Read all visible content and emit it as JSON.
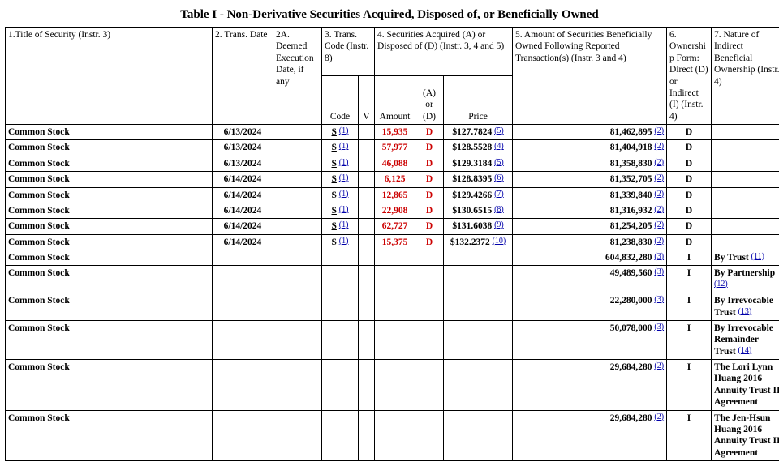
{
  "title": "Table I - Non-Derivative Securities Acquired, Disposed of, or Beneficially Owned",
  "headers": {
    "c1": "1.Title of Security\n(Instr. 3)",
    "c2": "2. Trans. Date",
    "c3": "2A. Deemed Execution Date, if any",
    "c4": "3. Trans. Code\n(Instr. 8)",
    "c6": "4. Securities Acquired (A) or Disposed of (D)\n(Instr. 3, 4 and 5)",
    "c9": "5. Amount of Securities Beneficially Owned Following Reported Transaction(s)\n(Instr. 3 and 4)",
    "c10": "6. Ownership Form: Direct (D) or Indirect (I) (Instr. 4)",
    "c11": "7. Nature of Indirect Beneficial Ownership\n(Instr. 4)",
    "sub_code": "Code",
    "sub_v": "V",
    "sub_amount": "Amount",
    "sub_ad": "(A) or (D)",
    "sub_price": "Price"
  },
  "rows": [
    {
      "title": "Common Stock",
      "date": "6/13/2024",
      "deemed": "",
      "code": "S",
      "code_fn": "(1)",
      "v": "",
      "amount": "15,935",
      "amount_red": true,
      "ad": "D",
      "ad_red": true,
      "price": "$127.7824",
      "price_fn": "(5)",
      "owned": "81,462,895",
      "owned_fn": "(2)",
      "form": "D",
      "nature": "",
      "nature_fn": ""
    },
    {
      "title": "Common Stock",
      "date": "6/13/2024",
      "deemed": "",
      "code": "S",
      "code_fn": "(1)",
      "v": "",
      "amount": "57,977",
      "amount_red": true,
      "ad": "D",
      "ad_red": true,
      "price": "$128.5528",
      "price_fn": "(4)",
      "owned": "81,404,918",
      "owned_fn": "(2)",
      "form": "D",
      "nature": "",
      "nature_fn": ""
    },
    {
      "title": "Common Stock",
      "date": "6/13/2024",
      "deemed": "",
      "code": "S",
      "code_fn": "(1)",
      "v": "",
      "amount": "46,088",
      "amount_red": true,
      "ad": "D",
      "ad_red": true,
      "price": "$129.3184",
      "price_fn": "(5)",
      "owned": "81,358,830",
      "owned_fn": "(2)",
      "form": "D",
      "nature": "",
      "nature_fn": ""
    },
    {
      "title": "Common Stock",
      "date": "6/14/2024",
      "deemed": "",
      "code": "S",
      "code_fn": "(1)",
      "v": "",
      "amount": "6,125",
      "amount_red": true,
      "ad": "D",
      "ad_red": true,
      "price": "$128.8395",
      "price_fn": "(6)",
      "owned": "81,352,705",
      "owned_fn": "(2)",
      "form": "D",
      "nature": "",
      "nature_fn": ""
    },
    {
      "title": "Common Stock",
      "date": "6/14/2024",
      "deemed": "",
      "code": "S",
      "code_fn": "(1)",
      "v": "",
      "amount": "12,865",
      "amount_red": true,
      "ad": "D",
      "ad_red": true,
      "price": "$129.4266",
      "price_fn": "(7)",
      "owned": "81,339,840",
      "owned_fn": "(2)",
      "form": "D",
      "nature": "",
      "nature_fn": ""
    },
    {
      "title": "Common Stock",
      "date": "6/14/2024",
      "deemed": "",
      "code": "S",
      "code_fn": "(1)",
      "v": "",
      "amount": "22,908",
      "amount_red": true,
      "ad": "D",
      "ad_red": true,
      "price": "$130.6515",
      "price_fn": "(8)",
      "owned": "81,316,932",
      "owned_fn": "(2)",
      "form": "D",
      "nature": "",
      "nature_fn": ""
    },
    {
      "title": "Common Stock",
      "date": "6/14/2024",
      "deemed": "",
      "code": "S",
      "code_fn": "(1)",
      "v": "",
      "amount": "62,727",
      "amount_red": true,
      "ad": "D",
      "ad_red": true,
      "price": "$131.6038",
      "price_fn": "(9)",
      "owned": "81,254,205",
      "owned_fn": "(2)",
      "form": "D",
      "nature": "",
      "nature_fn": ""
    },
    {
      "title": "Common Stock",
      "date": "6/14/2024",
      "deemed": "",
      "code": "S",
      "code_fn": "(1)",
      "v": "",
      "amount": "15,375",
      "amount_red": true,
      "ad": "D",
      "ad_red": true,
      "price": "$132.2372",
      "price_fn": "(10)",
      "owned": "81,238,830",
      "owned_fn": "(2)",
      "form": "D",
      "nature": "",
      "nature_fn": ""
    },
    {
      "title": "Common Stock",
      "date": "",
      "deemed": "",
      "code": "",
      "code_fn": "",
      "v": "",
      "amount": "",
      "amount_red": false,
      "ad": "",
      "ad_red": false,
      "price": "",
      "price_fn": "",
      "owned": "604,832,280",
      "owned_fn": "(3)",
      "form": "I",
      "nature": "By Trust",
      "nature_fn": "(11)"
    },
    {
      "title": "Common Stock",
      "date": "",
      "deemed": "",
      "code": "",
      "code_fn": "",
      "v": "",
      "amount": "",
      "amount_red": false,
      "ad": "",
      "ad_red": false,
      "price": "",
      "price_fn": "",
      "owned": "49,489,560",
      "owned_fn": "(3)",
      "form": "I",
      "nature": "By Partnership",
      "nature_fn": "(12)"
    },
    {
      "title": "Common Stock",
      "date": "",
      "deemed": "",
      "code": "",
      "code_fn": "",
      "v": "",
      "amount": "",
      "amount_red": false,
      "ad": "",
      "ad_red": false,
      "price": "",
      "price_fn": "",
      "owned": "22,280,000",
      "owned_fn": "(3)",
      "form": "I",
      "nature": "By Irrevocable Trust",
      "nature_fn": "(13)"
    },
    {
      "title": "Common Stock",
      "date": "",
      "deemed": "",
      "code": "",
      "code_fn": "",
      "v": "",
      "amount": "",
      "amount_red": false,
      "ad": "",
      "ad_red": false,
      "price": "",
      "price_fn": "",
      "owned": "50,078,000",
      "owned_fn": "(3)",
      "form": "I",
      "nature": "By Irrevocable Remainder Trust",
      "nature_fn": "(14)"
    },
    {
      "title": "Common Stock",
      "date": "",
      "deemed": "",
      "code": "",
      "code_fn": "",
      "v": "",
      "amount": "",
      "amount_red": false,
      "ad": "",
      "ad_red": false,
      "price": "",
      "price_fn": "",
      "owned": "29,684,280",
      "owned_fn": "(2)",
      "form": "I",
      "nature": "The Lori Lynn Huang 2016 Annuity Trust II Agreement",
      "nature_fn": ""
    },
    {
      "title": "Common Stock",
      "date": "",
      "deemed": "",
      "code": "",
      "code_fn": "",
      "v": "",
      "amount": "",
      "amount_red": false,
      "ad": "",
      "ad_red": false,
      "price": "",
      "price_fn": "",
      "owned": "29,684,280",
      "owned_fn": "(2)",
      "form": "I",
      "nature": "The Jen-Hsun Huang 2016 Annuity Trust II Agreement",
      "nature_fn": ""
    }
  ]
}
